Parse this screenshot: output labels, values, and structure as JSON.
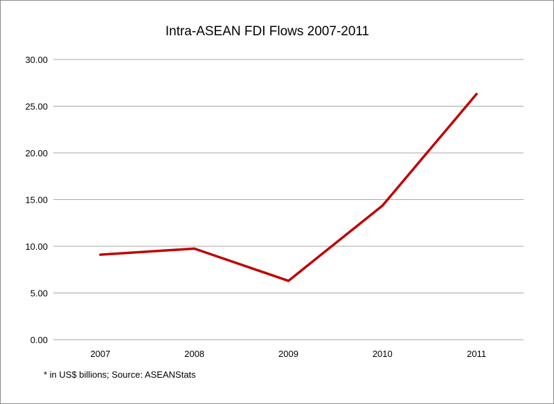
{
  "chart_data": {
    "type": "line",
    "title": "Intra-ASEAN FDI Flows 2007-2011",
    "categories": [
      "2007",
      "2008",
      "2009",
      "2010",
      "2011"
    ],
    "series": [
      {
        "values": [
          9.1,
          9.75,
          6.3,
          14.35,
          26.3
        ]
      }
    ],
    "ylim": [
      0,
      30
    ],
    "yticks": [
      "0.00",
      "5.00",
      "10.00",
      "15.00",
      "20.00",
      "25.00",
      "30.00"
    ],
    "grid": true,
    "legend": "none",
    "line_color": "#c00000",
    "grid_color": "#a6a6a6",
    "footnote": "* in US$ billions; Source: ASEANStats"
  }
}
